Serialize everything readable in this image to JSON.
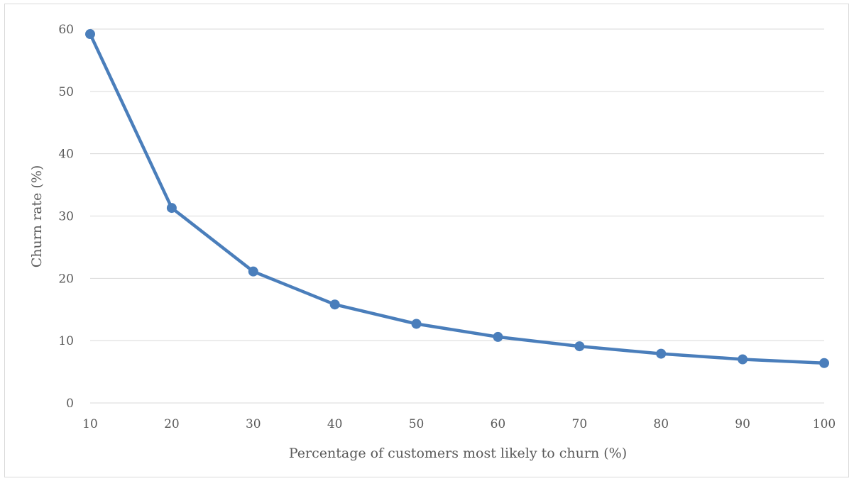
{
  "chart_data": {
    "type": "line",
    "title": "",
    "xlabel": "Percentage of customers most likely to churn (%)",
    "ylabel": "Churn rate (%)",
    "x": [
      10,
      20,
      30,
      40,
      50,
      60,
      70,
      80,
      90,
      100
    ],
    "xticks": [
      "10",
      "20",
      "30",
      "40",
      "50",
      "60",
      "70",
      "80",
      "90",
      "100"
    ],
    "yticks": [
      "0",
      "10",
      "20",
      "30",
      "40",
      "50",
      "60"
    ],
    "ylim": [
      0,
      60
    ],
    "grid": true,
    "legend": "none",
    "series": [
      {
        "color": "#4a7ebb",
        "values": [
          59.2,
          31.3,
          21.1,
          15.8,
          12.7,
          10.6,
          9.1,
          7.9,
          7.0,
          6.4
        ]
      }
    ]
  }
}
